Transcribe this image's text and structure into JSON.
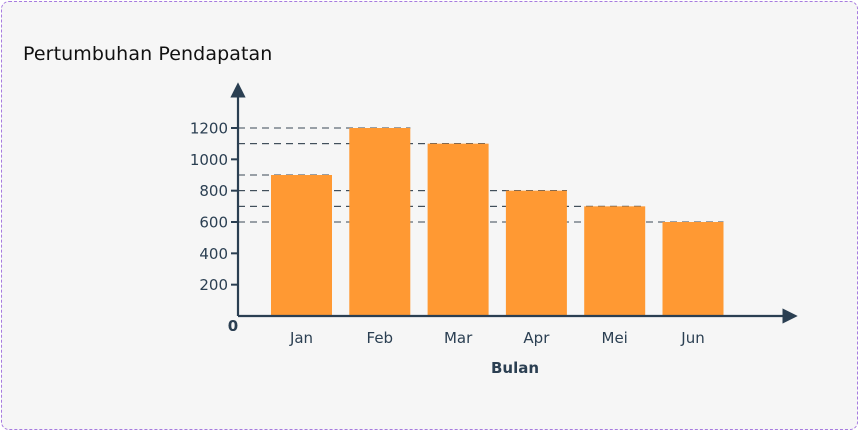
{
  "chart_data": {
    "type": "bar",
    "title": "Pertumbuhan Pendapatan",
    "xlabel": "Bulan",
    "ylabel": "",
    "categories": [
      "Jan",
      "Feb",
      "Mar",
      "Apr",
      "Mei",
      "Jun"
    ],
    "values": [
      900,
      1200,
      1100,
      800,
      700,
      600
    ],
    "yticks": [
      200,
      400,
      600,
      800,
      1000,
      1200
    ],
    "origin_label": "0",
    "ylim": [
      0,
      1200
    ],
    "grid": false,
    "reference_lines": "dashed",
    "colors": {
      "bar": "#ff9933",
      "axis": "#2b3f52",
      "tick_text": "#2b3f52",
      "guide": "#3a4856"
    }
  }
}
